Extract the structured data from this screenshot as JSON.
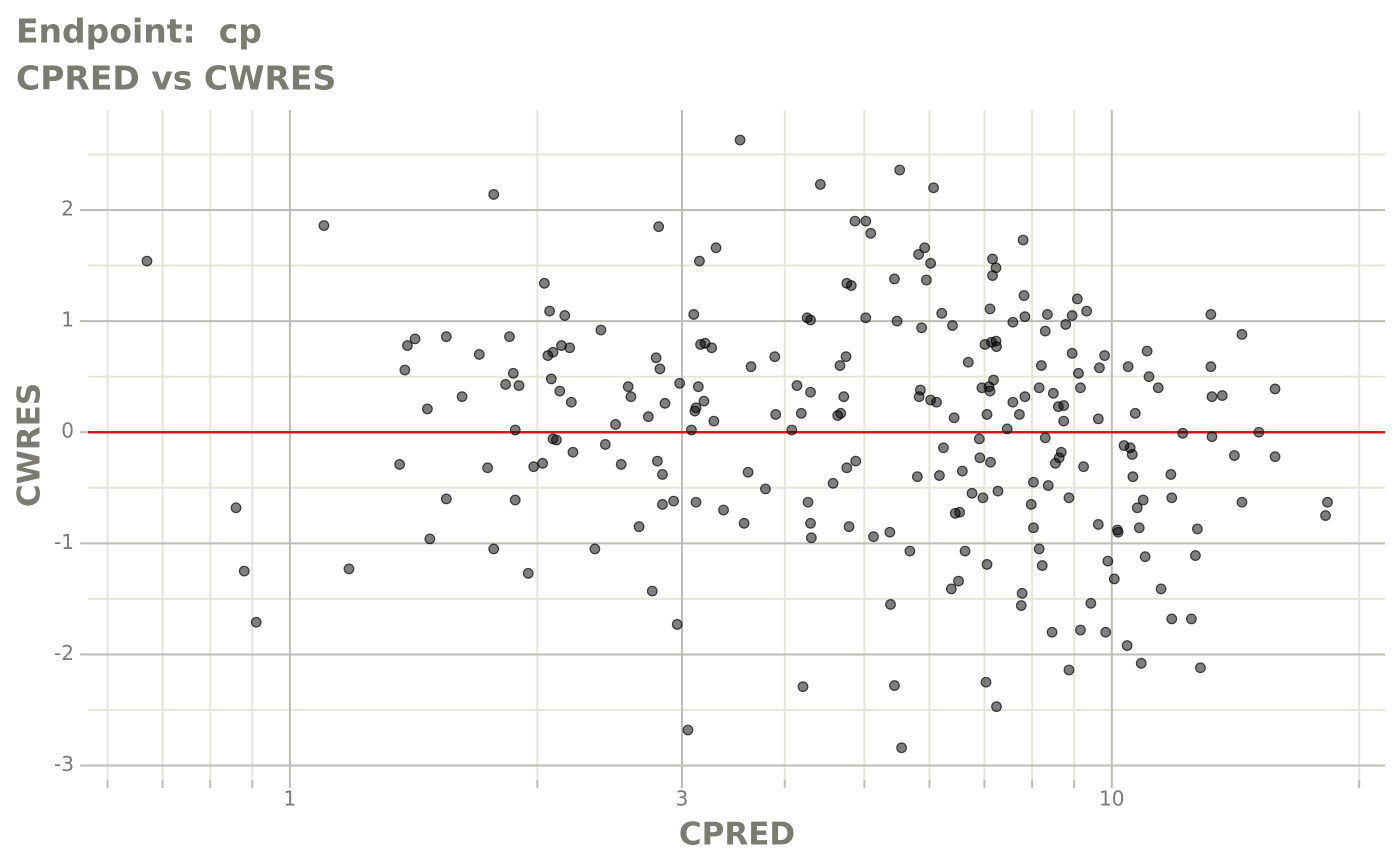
{
  "chart_data": {
    "type": "scatter",
    "title": "Endpoint:  cp",
    "subtitle": "CPRED vs CWRES",
    "x_label": "CPRED",
    "y_label": "CWRES",
    "x_log": true,
    "xlim": [
      0.568,
      21.5
    ],
    "ylim": [
      -3.13,
      2.9
    ],
    "xticks": [
      1,
      3,
      10
    ],
    "xminor_ticks": [
      0.6,
      0.7,
      0.8,
      0.9,
      2,
      4,
      5,
      6,
      7,
      8,
      9,
      20
    ],
    "yticks": [
      -3,
      -2,
      -1,
      0,
      1,
      2
    ],
    "yminor_ticks": [
      -2.5,
      -1.5,
      -0.5,
      0.5,
      1.5,
      2.5
    ],
    "grid": true,
    "color": "#000000",
    "reference_line": {
      "value": 0,
      "color": "#e0141e"
    },
    "x": [
      0.67,
      0.86,
      0.88,
      0.91,
      1.1,
      1.18,
      1.36,
      1.38,
      1.39,
      1.42,
      1.47,
      1.48,
      1.55,
      1.55,
      1.62,
      1.7,
      1.74,
      1.77,
      1.77,
      1.83,
      1.85,
      1.87,
      1.88,
      1.88,
      1.9,
      1.95,
      1.98,
      2.03,
      2.04,
      2.06,
      2.07,
      2.08,
      2.09,
      2.09,
      2.11,
      2.13,
      2.14,
      2.16,
      2.19,
      2.2,
      2.21,
      2.35,
      2.39,
      2.42,
      2.49,
      2.53,
      2.58,
      2.6,
      2.66,
      2.73,
      2.76,
      2.79,
      2.8,
      2.81,
      2.82,
      2.84,
      2.84,
      2.86,
      2.93,
      2.96,
      2.98,
      3.05,
      3.08,
      3.1,
      3.11,
      3.12,
      3.12,
      3.14,
      3.15,
      3.16,
      3.19,
      3.2,
      3.26,
      3.28,
      3.3,
      3.37,
      3.53,
      3.57,
      3.61,
      3.64,
      3.79,
      3.89,
      3.9,
      4.08,
      4.14,
      4.19,
      4.21,
      4.26,
      4.27,
      4.3,
      4.3,
      4.3,
      4.31,
      4.42,
      4.58,
      4.64,
      4.67,
      4.68,
      4.72,
      4.75,
      4.76,
      4.76,
      4.79,
      4.82,
      4.87,
      4.88,
      5.02,
      5.02,
      5.09,
      5.13,
      5.37,
      5.38,
      5.44,
      5.44,
      5.48,
      5.52,
      5.55,
      5.68,
      5.8,
      5.82,
      5.83,
      5.85,
      5.87,
      5.92,
      5.95,
      6.02,
      6.02,
      6.07,
      6.12,
      6.17,
      6.21,
      6.24,
      6.38,
      6.4,
      6.43,
      6.45,
      6.51,
      6.53,
      6.58,
      6.63,
      6.69,
      6.76,
      6.9,
      6.91,
      6.95,
      6.97,
      7.01,
      7.03,
      7.05,
      7.05,
      7.09,
      7.11,
      7.11,
      7.12,
      7.14,
      7.16,
      7.16,
      7.18,
      7.23,
      7.23,
      7.24,
      7.24,
      7.27,
      7.46,
      7.58,
      7.58,
      7.72,
      7.76,
      7.78,
      7.8,
      7.82,
      7.84,
      7.84,
      7.98,
      8.03,
      8.03,
      8.16,
      8.16,
      8.21,
      8.23,
      8.3,
      8.3,
      8.35,
      8.37,
      8.46,
      8.49,
      8.54,
      8.61,
      8.63,
      8.68,
      8.74,
      8.74,
      8.79,
      8.87,
      8.87,
      8.95,
      8.95,
      9.08,
      9.11,
      9.16,
      9.16,
      9.24,
      9.32,
      9.43,
      9.63,
      9.63,
      9.66,
      9.8,
      9.83,
      9.89,
      10.07,
      10.16,
      10.18,
      10.35,
      10.44,
      10.47,
      10.53,
      10.59,
      10.61,
      10.68,
      10.74,
      10.8,
      10.86,
      10.92,
      10.98,
      11.04,
      11.1,
      11.39,
      11.48,
      11.8,
      11.83,
      11.83,
      12.2,
      12.5,
      12.64,
      12.71,
      12.82,
      13.2,
      13.2,
      13.24,
      13.24,
      13.63,
      14.1,
      14.4,
      14.4,
      15.1,
      15.8,
      15.8,
      18.2,
      18.3
    ],
    "values": [
      1.54,
      -0.68,
      -1.25,
      -1.71,
      1.86,
      -1.23,
      -0.29,
      0.56,
      0.78,
      0.84,
      0.21,
      -0.96,
      0.86,
      -0.6,
      0.32,
      0.7,
      -0.32,
      2.14,
      -1.05,
      0.43,
      0.86,
      0.53,
      -0.61,
      0.02,
      0.42,
      -1.27,
      -0.31,
      -0.28,
      1.34,
      0.69,
      1.09,
      0.48,
      0.72,
      -0.06,
      -0.07,
      0.37,
      0.78,
      1.05,
      0.76,
      0.27,
      -0.18,
      -1.05,
      0.92,
      -0.11,
      0.07,
      -0.29,
      0.41,
      0.32,
      -0.85,
      0.14,
      -1.43,
      0.67,
      -0.26,
      1.85,
      0.57,
      -0.38,
      -0.65,
      0.26,
      -0.62,
      -1.73,
      0.44,
      -2.68,
      0.02,
      1.06,
      0.19,
      -0.63,
      0.22,
      0.41,
      1.54,
      0.79,
      0.28,
      0.8,
      0.76,
      0.1,
      1.66,
      -0.7,
      2.63,
      -0.82,
      -0.36,
      0.59,
      -0.51,
      0.68,
      0.16,
      0.02,
      0.42,
      0.17,
      -2.29,
      1.03,
      -0.63,
      1.01,
      0.36,
      -0.82,
      -0.95,
      2.23,
      -0.46,
      0.15,
      0.6,
      0.17,
      0.32,
      0.68,
      -0.32,
      1.34,
      -0.85,
      1.32,
      1.9,
      -0.26,
      1.9,
      1.03,
      1.79,
      -0.94,
      -0.9,
      -1.55,
      1.38,
      -2.28,
      1.0,
      2.36,
      -2.84,
      -1.07,
      -0.4,
      1.6,
      0.32,
      0.38,
      0.94,
      1.66,
      1.37,
      1.52,
      0.29,
      2.2,
      0.27,
      -0.39,
      1.07,
      -0.14,
      -1.41,
      0.96,
      0.13,
      -0.73,
      -1.34,
      -0.72,
      -0.35,
      -1.07,
      0.63,
      -0.55,
      -0.06,
      -0.23,
      0.4,
      -0.59,
      0.79,
      -2.25,
      0.16,
      -1.19,
      0.41,
      0.37,
      1.11,
      -0.27,
      0.81,
      1.56,
      1.41,
      0.47,
      1.48,
      0.82,
      0.77,
      -2.47,
      -0.53,
      0.03,
      0.99,
      0.27,
      0.16,
      -1.56,
      -1.45,
      1.73,
      1.23,
      1.04,
      0.32,
      -0.65,
      -0.45,
      -0.86,
      0.4,
      -1.05,
      0.6,
      -1.2,
      0.91,
      -0.05,
      1.06,
      -0.48,
      -1.8,
      0.35,
      -0.28,
      0.23,
      -0.23,
      -0.18,
      0.24,
      0.1,
      0.97,
      -2.14,
      -0.59,
      1.05,
      0.71,
      1.2,
      0.53,
      -1.78,
      0.4,
      -0.31,
      1.09,
      -1.54,
      -0.83,
      0.12,
      0.58,
      0.69,
      -1.8,
      -1.16,
      -1.32,
      -0.88,
      -0.9,
      -0.12,
      -1.92,
      0.59,
      -0.14,
      -0.2,
      -0.4,
      0.17,
      -0.68,
      -0.86,
      -2.08,
      -0.61,
      -1.12,
      0.73,
      0.5,
      0.4,
      -1.41,
      -0.38,
      -1.68,
      -0.59,
      -0.01,
      -1.68,
      -1.11,
      -0.87,
      -2.12,
      1.06,
      0.59,
      0.32,
      -0.04,
      0.33,
      -0.21,
      -0.63,
      0.88,
      0.0,
      -0.22,
      0.39,
      -0.75,
      -0.63
    ]
  }
}
